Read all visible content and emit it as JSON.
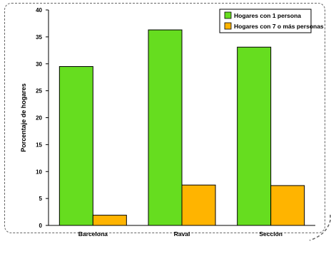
{
  "colors": {
    "series_1": "#66dd1f",
    "series_2": "#ffb400",
    "axis": "#000000",
    "frame": "#666666"
  },
  "chart_data": {
    "type": "bar",
    "categories": [
      "Barcelona",
      "Raval",
      "Sección"
    ],
    "series": [
      {
        "name": "Hogares con 1 persona",
        "values": [
          29.5,
          36.3,
          33.1
        ]
      },
      {
        "name": "Hogares con 7 o más personas",
        "values": [
          1.9,
          7.5,
          7.4
        ]
      }
    ],
    "ylabel": "Porcentaje de hogares",
    "xlabel": "",
    "title": "",
    "ylim": [
      0,
      40
    ],
    "yticks": [
      0,
      5,
      10,
      15,
      20,
      25,
      30,
      35,
      40
    ],
    "legend_position": "top-right",
    "grid": false
  }
}
